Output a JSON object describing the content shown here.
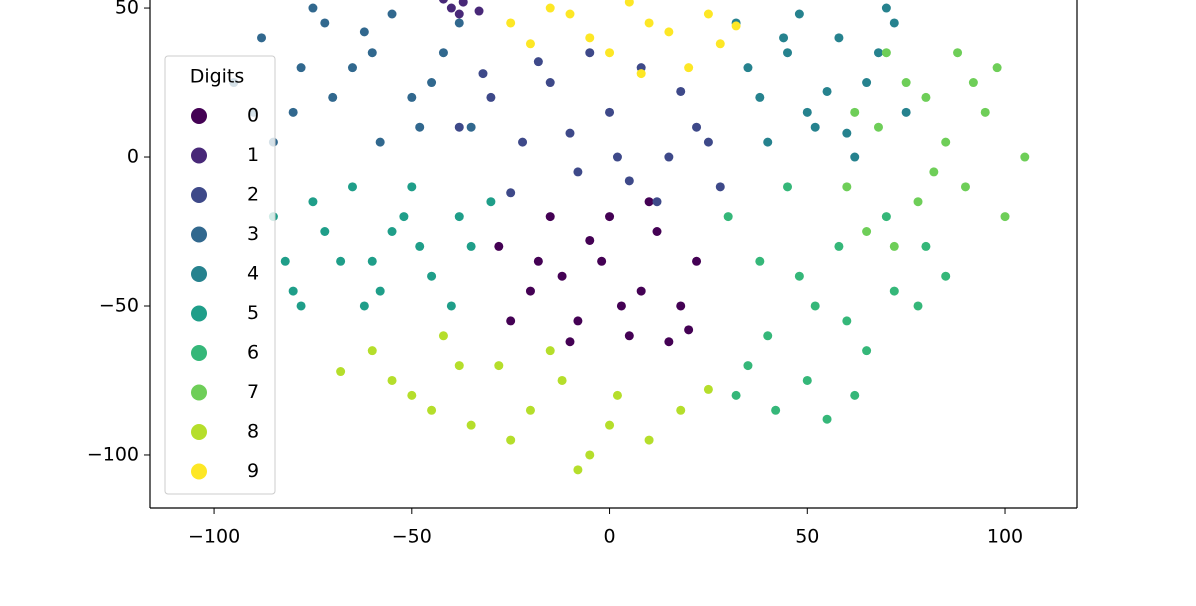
{
  "chart_data": {
    "type": "scatter",
    "xlim": [
      -116.2,
      118.2
    ],
    "ylim": [
      -117.8,
      52.7
    ],
    "xticks": [
      {
        "value": -100,
        "label": "−100"
      },
      {
        "value": -50,
        "label": "−50"
      },
      0,
      50,
      100
    ],
    "yticks": [
      50,
      0,
      {
        "value": -50,
        "label": "−50"
      },
      {
        "value": -100,
        "label": "−100"
      }
    ],
    "legend_title": "Digits",
    "legend_position": "upper left",
    "series": [
      {
        "name": "0",
        "color": "#440154",
        "x": [
          -28,
          -20,
          -15,
          -8,
          -2,
          5,
          12,
          18,
          22,
          -25,
          -12,
          0,
          8,
          15,
          -5,
          3,
          -18,
          10,
          20,
          -10
        ],
        "y": [
          -30,
          -45,
          -20,
          -55,
          -35,
          -60,
          -25,
          -50,
          -35,
          -55,
          -40,
          -20,
          -45,
          -62,
          -28,
          -50,
          -35,
          -15,
          -58,
          -62
        ]
      },
      {
        "name": "1",
        "color": "#482878",
        "x": [
          -40,
          -37,
          -33,
          -42,
          -38
        ],
        "y": [
          50,
          52,
          49,
          53,
          48
        ]
      },
      {
        "name": "2",
        "color": "#3e4989",
        "x": [
          -38,
          -30,
          -22,
          -15,
          -8,
          0,
          8,
          15,
          22,
          28,
          -25,
          -10,
          5,
          18,
          -32,
          -5,
          12,
          25,
          -18,
          2
        ],
        "y": [
          10,
          20,
          5,
          25,
          -5,
          15,
          30,
          0,
          10,
          -10,
          -12,
          8,
          -8,
          22,
          28,
          35,
          -15,
          5,
          32,
          0
        ]
      },
      {
        "name": "3",
        "color": "#31688e",
        "x": [
          -95,
          -88,
          -80,
          -72,
          -65,
          -58,
          -50,
          -42,
          -35,
          -85,
          -75,
          -62,
          -55,
          -45,
          -70,
          -90,
          -60,
          -48,
          -38,
          -78
        ],
        "y": [
          25,
          40,
          15,
          45,
          30,
          5,
          20,
          35,
          10,
          5,
          50,
          42,
          48,
          25,
          20,
          15,
          35,
          10,
          45,
          30
        ]
      },
      {
        "name": "4",
        "color": "#26828e",
        "x": [
          32,
          38,
          45,
          52,
          58,
          65,
          70,
          75,
          40,
          48,
          55,
          62,
          68,
          35,
          50,
          72,
          44,
          60
        ],
        "y": [
          45,
          20,
          35,
          10,
          40,
          25,
          50,
          15,
          5,
          48,
          22,
          0,
          35,
          30,
          15,
          45,
          40,
          8
        ]
      },
      {
        "name": "5",
        "color": "#1f9e89",
        "x": [
          -85,
          -80,
          -75,
          -68,
          -62,
          -55,
          -50,
          -45,
          -38,
          -30,
          -82,
          -72,
          -65,
          -58,
          -48,
          -40,
          -78,
          -60,
          -52,
          -35
        ],
        "y": [
          -20,
          -45,
          -15,
          -35,
          -50,
          -25,
          -10,
          -40,
          -20,
          -15,
          -35,
          -25,
          -10,
          -45,
          -30,
          -50,
          -50,
          -35,
          -20,
          -30
        ]
      },
      {
        "name": "6",
        "color": "#35b779",
        "x": [
          30,
          38,
          45,
          52,
          58,
          65,
          72,
          80,
          35,
          42,
          50,
          60,
          70,
          78,
          32,
          48,
          55,
          40,
          62,
          85
        ],
        "y": [
          -20,
          -35,
          -10,
          -50,
          -30,
          -65,
          -45,
          -30,
          -70,
          -85,
          -75,
          -55,
          -20,
          -50,
          -80,
          -40,
          -88,
          -60,
          -80,
          -40
        ]
      },
      {
        "name": "7",
        "color": "#6ece58",
        "x": [
          60,
          68,
          75,
          82,
          88,
          95,
          100,
          105,
          65,
          72,
          80,
          90,
          98,
          85,
          78,
          62,
          92,
          70
        ],
        "y": [
          -10,
          10,
          25,
          -5,
          35,
          15,
          -20,
          0,
          -25,
          -30,
          20,
          -10,
          30,
          5,
          -15,
          15,
          25,
          35
        ]
      },
      {
        "name": "8",
        "color": "#b5de2b",
        "x": [
          -68,
          -60,
          -50,
          -42,
          -35,
          -28,
          -20,
          -12,
          -5,
          2,
          10,
          18,
          25,
          -55,
          -38,
          -25,
          -15,
          0,
          -45,
          -8
        ],
        "y": [
          -72,
          -65,
          -80,
          -60,
          -90,
          -70,
          -85,
          -75,
          -100,
          -80,
          -95,
          -85,
          -78,
          -75,
          -70,
          -95,
          -65,
          -90,
          -85,
          -105
        ]
      },
      {
        "name": "9",
        "color": "#fde725",
        "x": [
          -25,
          -15,
          -5,
          5,
          15,
          25,
          32,
          -20,
          0,
          10,
          20,
          -10,
          28,
          8
        ],
        "y": [
          45,
          50,
          40,
          52,
          42,
          48,
          44,
          38,
          35,
          45,
          30,
          48,
          38,
          28
        ]
      }
    ]
  }
}
